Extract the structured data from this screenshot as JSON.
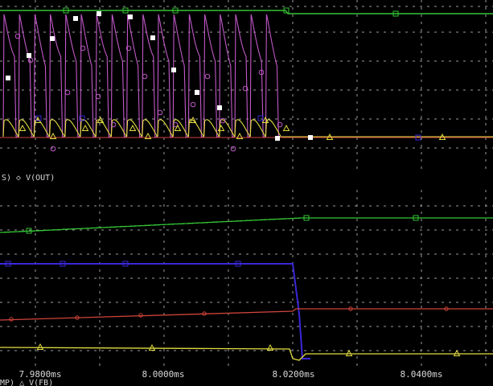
{
  "chart_data": [
    {
      "type": "line",
      "title": "",
      "grid": true,
      "legend_text": "S) ◇ V(OUT)",
      "x_tick_labels": [],
      "series": [
        {
          "name": "",
          "color": "#34c434",
          "marker": "square",
          "points": [
            [
              0,
              0.98
            ],
            [
              355,
              0.98
            ],
            [
              360,
              0.97
            ],
            [
              613,
              0.97
            ]
          ]
        },
        {
          "name": "V(OUT)",
          "color": "#c158c8",
          "marker": "diamond",
          "pulses": 18
        },
        {
          "name": "",
          "color": "#e2dc40",
          "marker": "triangle",
          "pulses": 18
        },
        {
          "name": "",
          "color": "#ffffff",
          "marker": "square-filled"
        }
      ]
    },
    {
      "type": "line",
      "title": "",
      "grid": true,
      "x_tick_labels": [
        "7.9800ms",
        "8.0000ms",
        "8.0200ms",
        "8.0400ms"
      ],
      "legend_text": "MP) △ V(FB)",
      "series": [
        {
          "name": "",
          "color": "#34c434",
          "marker": "square"
        },
        {
          "name": "",
          "color": "#3a28d8",
          "marker": "square"
        },
        {
          "name": "",
          "color": "#d0443a",
          "marker": "circle"
        },
        {
          "name": "V(FB)",
          "color": "#e2dc40",
          "marker": "triangle"
        }
      ]
    }
  ]
}
